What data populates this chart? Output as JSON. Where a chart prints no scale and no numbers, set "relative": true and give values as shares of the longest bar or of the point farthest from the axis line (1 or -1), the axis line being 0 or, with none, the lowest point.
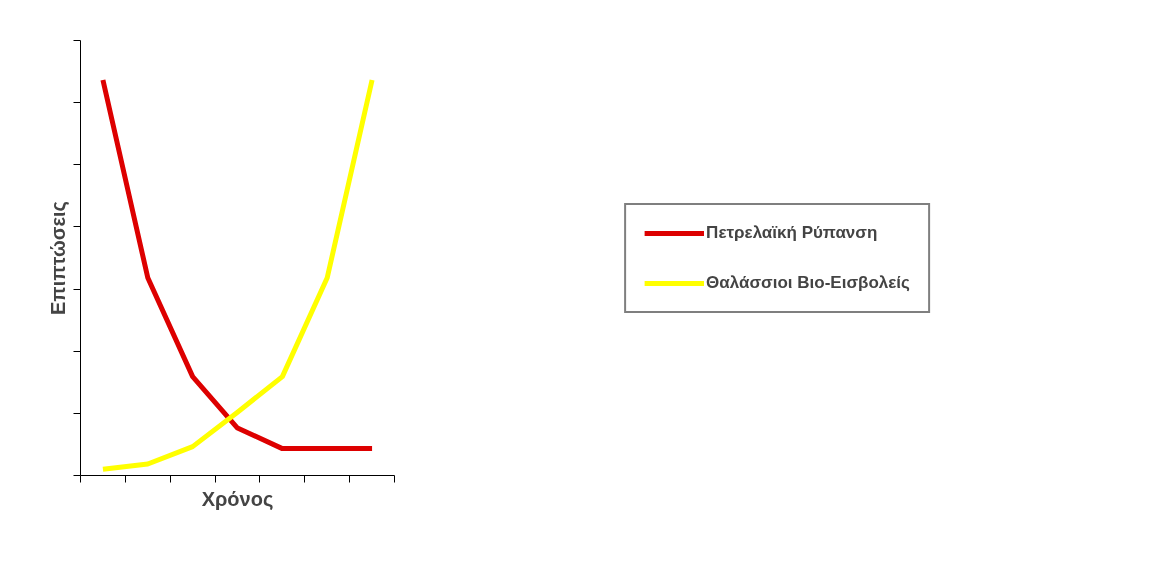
{
  "chart_data": {
    "type": "line",
    "xlabel": "Χρόνος",
    "ylabel": "Επιπτώσεις",
    "relative": true,
    "categories": [
      null,
      null,
      null,
      null,
      null,
      null,
      null
    ],
    "series": [
      {
        "name": "Πετρελαϊκή Ρύπανση",
        "color": "#dd0000",
        "values": [
          1,
          0.5,
          0.25,
          0.12,
          0.068,
          0.068,
          0.068
        ]
      },
      {
        "name": "Θαλάσσιοι Βιο-Εισβολείς",
        "color": "#ffff00",
        "values": [
          0.016,
          0.029,
          0.073,
          0.16,
          0.25,
          0.5,
          1
        ]
      }
    ],
    "legend": "right",
    "grid": false,
    "marker": "none",
    "line_style": "solid"
  }
}
